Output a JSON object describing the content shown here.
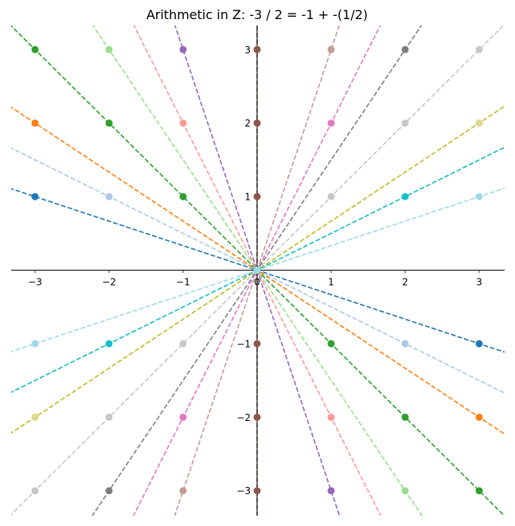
{
  "chart_data": {
    "type": "line",
    "title": "Arithmetic in Z:  -3 / 2 = -1 + -(1/2)",
    "xlabel": "",
    "ylabel": "",
    "xlim": [
      -3.35,
      3.35
    ],
    "ylim": [
      -3.35,
      3.35
    ],
    "x_ticks": [
      -3,
      -2,
      -1,
      0,
      1,
      2,
      3
    ],
    "y_ticks": [
      -3,
      -2,
      -1,
      1,
      2,
      3
    ],
    "grid": false,
    "legend": "none",
    "lines": [
      {
        "slope": -0.3333,
        "color": "#1f77b4",
        "points": [
          [
            -3,
            1
          ],
          [
            3,
            -1
          ]
        ]
      },
      {
        "slope": -0.5,
        "color": "#aec7e8",
        "points": [
          [
            -2,
            1
          ],
          [
            2,
            -1
          ]
        ]
      },
      {
        "slope": -0.6667,
        "color": "#ff7f0e",
        "points": [
          [
            -3,
            2
          ],
          [
            3,
            -2
          ]
        ]
      },
      {
        "slope": -1,
        "color": "#2ca02c",
        "points": [
          [
            -1,
            1
          ],
          [
            -2,
            2
          ],
          [
            -3,
            3
          ],
          [
            1,
            -1
          ],
          [
            2,
            -2
          ],
          [
            3,
            -3
          ]
        ]
      },
      {
        "slope": -1.5,
        "color": "#98df8a",
        "points": [
          [
            -2,
            3
          ],
          [
            2,
            -3
          ]
        ]
      },
      {
        "slope": -2,
        "color": "#ff9896",
        "points": [
          [
            -1,
            2
          ],
          [
            1,
            -2
          ]
        ]
      },
      {
        "slope": -3,
        "color": "#9467bd",
        "points": [
          [
            -1,
            3
          ],
          [
            1,
            -3
          ]
        ]
      },
      {
        "slope": "vertical",
        "color": "#8c564b",
        "points": [
          [
            0,
            1
          ],
          [
            0,
            2
          ],
          [
            0,
            3
          ],
          [
            0,
            -1
          ],
          [
            0,
            -2
          ],
          [
            0,
            -3
          ]
        ]
      },
      {
        "slope": 3,
        "color": "#c49c94",
        "points": [
          [
            1,
            3
          ],
          [
            -1,
            -3
          ]
        ]
      },
      {
        "slope": 2,
        "color": "#e377c2",
        "points": [
          [
            1,
            2
          ],
          [
            -1,
            -2
          ]
        ]
      },
      {
        "slope": 1.5,
        "color": "#7f7f7f",
        "points": [
          [
            2,
            3
          ],
          [
            -2,
            -3
          ]
        ]
      },
      {
        "slope": 1,
        "color": "#c7c7c7",
        "points": [
          [
            1,
            1
          ],
          [
            2,
            2
          ],
          [
            3,
            3
          ],
          [
            -1,
            -1
          ],
          [
            -2,
            -2
          ],
          [
            -3,
            -3
          ]
        ]
      },
      {
        "slope": 0.6667,
        "color": "#bcbd22",
        "points": [
          [
            3,
            2
          ],
          [
            -3,
            -2
          ]
        ]
      },
      {
        "slope": 0.5,
        "color": "#dbdb8d",
        "points": []
      },
      {
        "slope": 0.5,
        "color": "#17becf",
        "points": [
          [
            2,
            1
          ],
          [
            -2,
            -1
          ]
        ]
      },
      {
        "slope": 0.3333,
        "color": "#9edae5",
        "points": [
          [
            3,
            1
          ],
          [
            -3,
            -1
          ]
        ]
      }
    ],
    "extra_points": [
      {
        "x": 3,
        "y": 2,
        "color": "#dbdb8d"
      },
      {
        "x": -3,
        "y": -2,
        "color": "#dbdb8d"
      }
    ],
    "axis_color": "#000000"
  }
}
